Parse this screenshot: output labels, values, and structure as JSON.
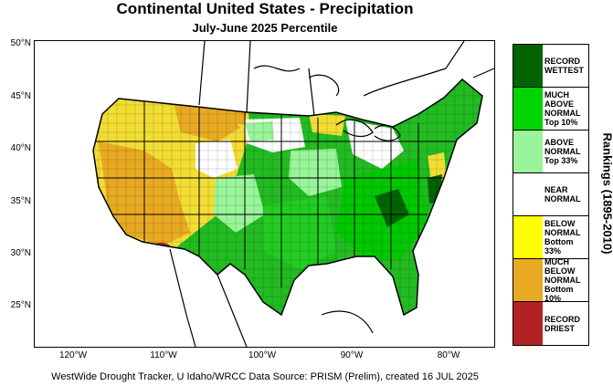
{
  "title": "Continental United States - Precipitation",
  "subtitle": "July-June 2025 Percentile",
  "credit": "WestWide Drought Tracker, U Idaho/WRCC Data Source: PRISM (Prelim), created 16 JUL 2025",
  "latitude_labels": [
    "50°N",
    "45°N",
    "40°N",
    "35°N",
    "30°N",
    "25°N"
  ],
  "longitude_labels": [
    "120°W",
    "110°W",
    "100°W",
    "90°W",
    "80°W"
  ],
  "legend": {
    "title": "Rankings (1895-2010)",
    "items": [
      {
        "label": "RECORD\nWETTEST",
        "color": "#006400"
      },
      {
        "label": "MUCH\nABOVE\nNORMAL\nTop 10%",
        "color": "#00d400"
      },
      {
        "label": "ABOVE\nNORMAL\nTop 33%",
        "color": "#99f599"
      },
      {
        "label": "NEAR\nNORMAL",
        "color": "#ffffff"
      },
      {
        "label": "BELOW\nNORMAL\nBottom 33%",
        "color": "#ffff00"
      },
      {
        "label": "MUCH\nBELOW\nNORMAL\nBottom 10%",
        "color": "#e8aa22"
      },
      {
        "label": "RECORD\nDRIEST",
        "color": "#b22222"
      }
    ]
  }
}
